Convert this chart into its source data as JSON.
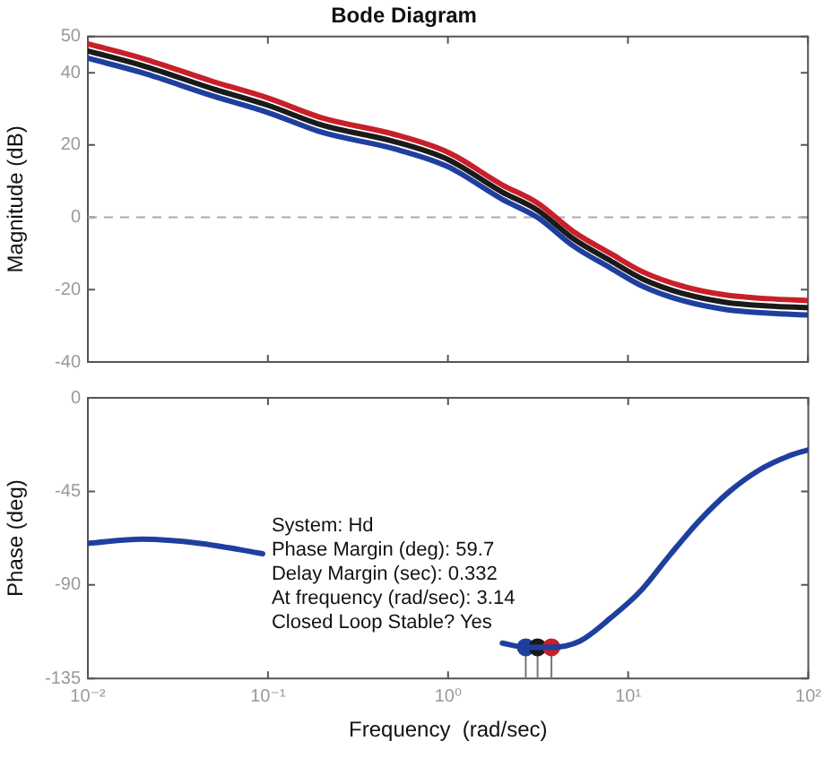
{
  "chart_data": [
    {
      "type": "line",
      "title": "Bode Diagram",
      "ylabel": "Magnitude (dB)",
      "log": "x",
      "x": [
        0.01,
        0.02,
        0.05,
        0.1,
        0.2,
        0.5,
        1,
        2,
        3.14,
        5,
        8,
        12,
        20,
        35,
        60,
        100
      ],
      "series": [
        {
          "color": "#1f3f9f",
          "values": [
            44,
            40,
            33.5,
            29,
            23.5,
            19,
            14,
            5,
            0,
            -8,
            -14,
            -19,
            -23,
            -25.5,
            -26.5,
            -27
          ]
        },
        {
          "color": "#1a1a1a",
          "values": [
            46,
            42,
            35.5,
            31,
            25.5,
            21,
            16,
            7,
            2,
            -6,
            -12,
            -17,
            -21,
            -23.5,
            -24.5,
            -25
          ]
        },
        {
          "color": "#c8202a",
          "values": [
            48,
            44,
            37.5,
            33,
            27.5,
            23,
            18,
            9,
            4,
            -4,
            -10,
            -15,
            -19,
            -21.5,
            -22.5,
            -23
          ]
        }
      ],
      "xlim": [
        0.01,
        100
      ],
      "xticks": [
        0.01,
        0.1,
        1,
        10,
        100
      ],
      "ylim": [
        -40,
        50
      ],
      "yticks": [
        -40,
        -20,
        0,
        20,
        40,
        50
      ],
      "ref_lines": [
        {
          "axis": "y",
          "value": 0,
          "color": "#aaaaaa",
          "line_style": "dashed"
        }
      ],
      "tick_labels": "y",
      "grid": false,
      "legend": false
    },
    {
      "type": "line",
      "xlabel": "Frequency  (rad/sec)",
      "ylabel": "Phase (deg)",
      "log": "x",
      "series": [
        {
          "color": "#1f3f9f",
          "x": [
            0.01,
            0.02,
            0.042,
            0.0935,
            0.3,
            2.0,
            2.7,
            3.14,
            3.75,
            5.4,
            7.96,
            11.7,
            16.9,
            24.9,
            36.6,
            52.8,
            77.7,
            100
          ],
          "values": [
            -70,
            -68,
            -70,
            -75,
            null,
            -118,
            -120,
            -120,
            -120,
            -117,
            -106,
            -93,
            -76,
            -59,
            -45,
            -35,
            -28,
            -25
          ]
        },
        {
          "type": "scatter",
          "marker": "circle",
          "x": [
            2.7,
            3.14,
            3.75
          ],
          "values": [
            -120,
            -120,
            -120
          ],
          "colors": [
            "#1f3f9f",
            "#1a1a1a",
            "#c8202a"
          ],
          "errors": [
            [
              -135,
              -120
            ],
            [
              -135,
              -120
            ],
            [
              -135,
              -120
            ]
          ]
        }
      ],
      "xlim": [
        0.01,
        100
      ],
      "xticks": [
        {
          "value": 0.01,
          "label": "10⁻²"
        },
        {
          "value": 0.1,
          "label": "10⁻¹"
        },
        {
          "value": 1,
          "label": "10⁰"
        },
        {
          "value": 10,
          "label": "10¹"
        },
        {
          "value": 100,
          "label": "10²"
        }
      ],
      "ylim": [
        -135,
        0
      ],
      "yticks": [
        -135,
        -90,
        -45,
        0
      ],
      "annotations": [
        "System: Hd",
        "Phase Margin (deg): 59.7",
        "Delay Margin (sec): 0.332",
        "At frequency (rad/sec): 3.14",
        "Closed Loop Stable? Yes"
      ],
      "grid": false,
      "legend": false
    }
  ]
}
